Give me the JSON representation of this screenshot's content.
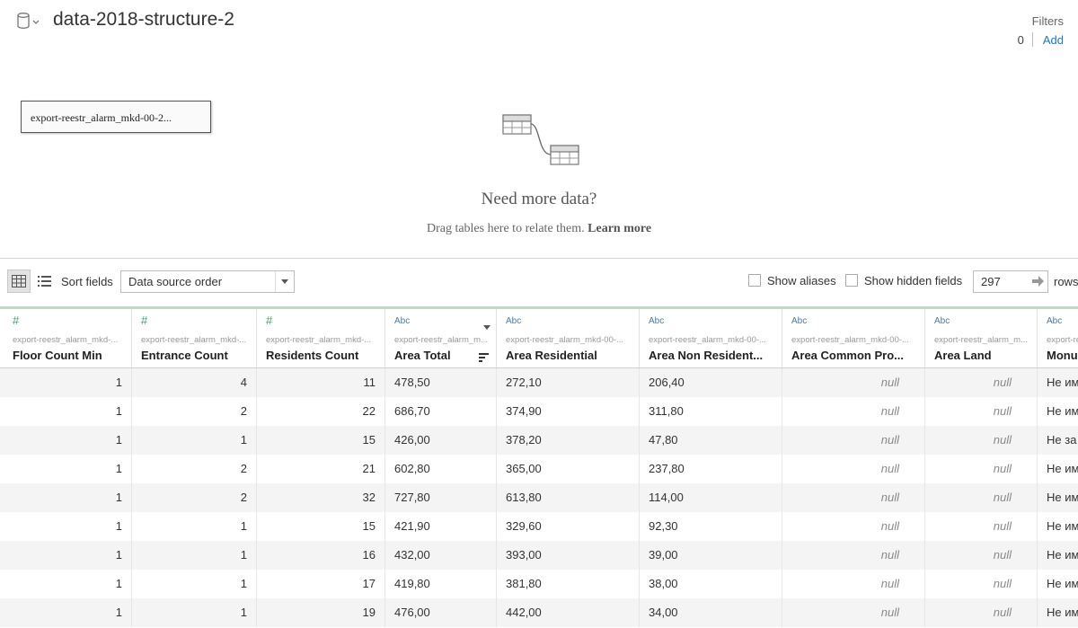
{
  "header": {
    "datasource_title": "data-2018-structure-2",
    "filters_label": "Filters",
    "filters_count": "0",
    "filters_add": "Add"
  },
  "canvas": {
    "table_name": "export-reestr_alarm_mkd-00-2...",
    "need_more": "Need more data?",
    "drag_hint": "Drag tables here to relate them.",
    "learn_more": "Learn more"
  },
  "toolbar": {
    "sort_label": "Sort fields",
    "sort_value": "Data source order",
    "show_aliases": "Show aliases",
    "show_hidden": "Show hidden fields",
    "rows_value": "297",
    "rows_label": "rows"
  },
  "columns": [
    {
      "type_icon": "#",
      "source": "export-reestr_alarm_mkd-...",
      "name": "Floor Count Min"
    },
    {
      "type_icon": "#",
      "source": "export-reestr_alarm_mkd-...",
      "name": "Entrance Count"
    },
    {
      "type_icon": "#",
      "source": "export-reestr_alarm_mkd-...",
      "name": "Residents Count"
    },
    {
      "type_icon": "Abc",
      "source": "export-reestr_alarm_m...",
      "name": "Area Total"
    },
    {
      "type_icon": "Abc",
      "source": "export-reestr_alarm_mkd-00-...",
      "name": "Area Residential"
    },
    {
      "type_icon": "Abc",
      "source": "export-reestr_alarm_mkd-00-...",
      "name": "Area Non Resident..."
    },
    {
      "type_icon": "Abc",
      "source": "export-reestr_alarm_mkd-00-...",
      "name": "Area Common Pro..."
    },
    {
      "type_icon": "Abc",
      "source": "export-reestr_alarm_m...",
      "name": "Area Land"
    },
    {
      "type_icon": "Abc",
      "source": "export-re",
      "name": "Monur"
    }
  ],
  "rows": [
    [
      "1",
      "4",
      "11",
      "478,50",
      "272,10",
      "206,40",
      "null",
      "null",
      "Не им"
    ],
    [
      "1",
      "2",
      "22",
      "686,70",
      "374,90",
      "311,80",
      "null",
      "null",
      "Не им"
    ],
    [
      "1",
      "1",
      "15",
      "426,00",
      "378,20",
      "47,80",
      "null",
      "null",
      "Не за"
    ],
    [
      "1",
      "2",
      "21",
      "602,80",
      "365,00",
      "237,80",
      "null",
      "null",
      "Не им"
    ],
    [
      "1",
      "2",
      "32",
      "727,80",
      "613,80",
      "114,00",
      "null",
      "null",
      "Не им"
    ],
    [
      "1",
      "1",
      "15",
      "421,90",
      "329,60",
      "92,30",
      "null",
      "null",
      "Не им"
    ],
    [
      "1",
      "1",
      "16",
      "432,00",
      "393,00",
      "39,00",
      "null",
      "null",
      "Не им"
    ],
    [
      "1",
      "1",
      "17",
      "419,80",
      "381,80",
      "38,00",
      "null",
      "null",
      "Не им"
    ],
    [
      "1",
      "1",
      "19",
      "476,00",
      "442,00",
      "34,00",
      "null",
      "null",
      "Не им"
    ]
  ],
  "colors": {
    "accent_link": "#1f77b4",
    "numeric_type": "#4e9a6a",
    "string_type": "#4a7aa5",
    "grid_top_accent": "#b7dcc7"
  }
}
